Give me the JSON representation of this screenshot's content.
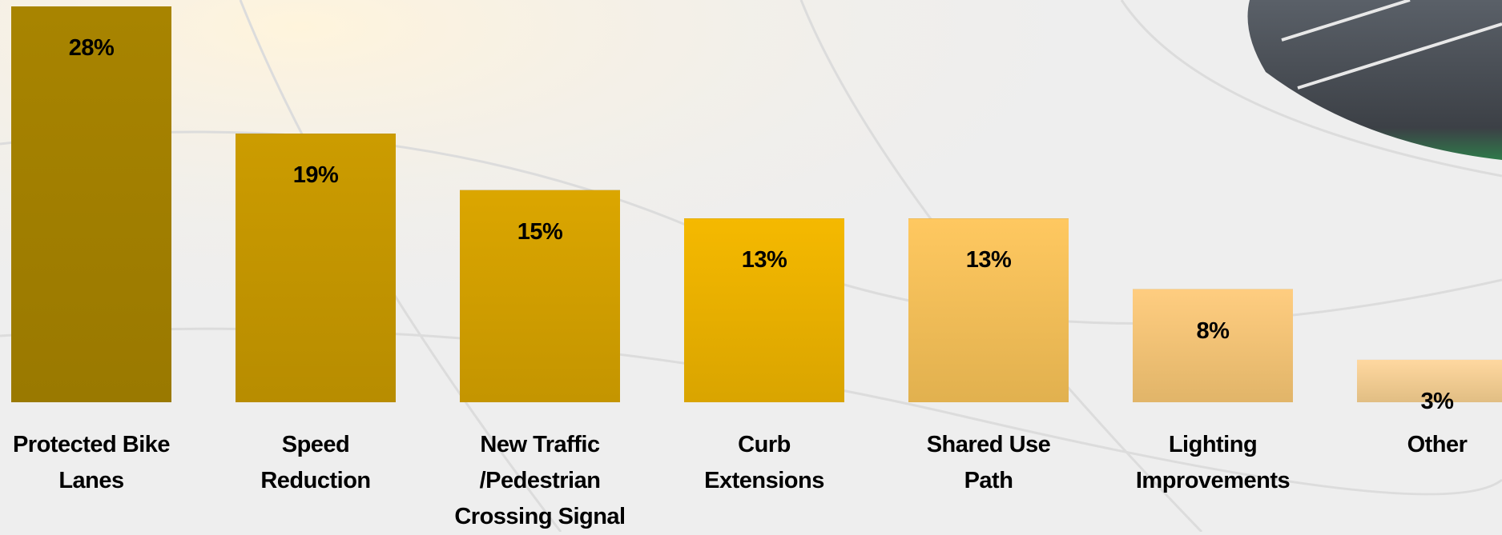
{
  "chart_data": {
    "type": "bar",
    "categories": [
      "Protected Bike\nLanes",
      "Speed\nReduction",
      "New Traffic\n/Pedestrian\nCrossing Signal",
      "Curb\nExtensions",
      "Shared Use\nPath",
      "Lighting\nImprovements",
      "Other"
    ],
    "values": [
      28,
      19,
      15,
      13,
      13,
      8,
      3
    ],
    "value_labels": [
      "28%",
      "19%",
      "15%",
      "13%",
      "13%",
      "8%",
      "3%"
    ],
    "colors": [
      "#a88400",
      "#cc9c00",
      "#dba600",
      "#f5b900",
      "#ffc860",
      "#ffcd80",
      "#ffd8a0"
    ]
  }
}
